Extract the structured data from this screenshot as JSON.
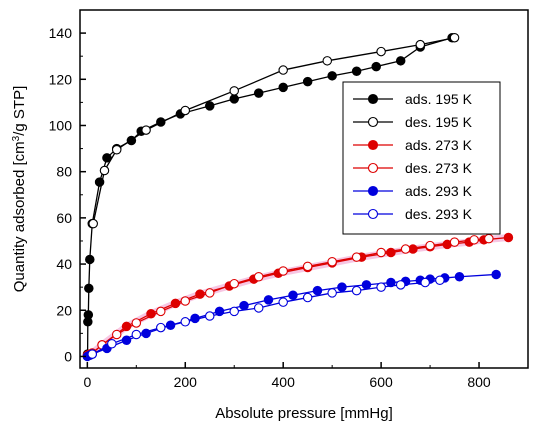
{
  "chart_data": {
    "type": "line",
    "xlabel": "Absolute pressure [mmHg]",
    "ylabel_parts": [
      "Quantity adsorbed [cm",
      "3",
      "/g STP]"
    ],
    "xlim": [
      -15,
      900
    ],
    "ylim": [
      -5,
      150
    ],
    "x_ticks": [
      0,
      200,
      400,
      600,
      800
    ],
    "y_ticks": [
      0,
      20,
      40,
      60,
      80,
      100,
      120,
      140
    ],
    "grid": false,
    "legend_position": "right",
    "series": [
      {
        "name": "ads. 195 K",
        "color": "#000000",
        "filled": true,
        "x": [
          0.5,
          1,
          2,
          3,
          5,
          10,
          25,
          40,
          60,
          90,
          110,
          150,
          190,
          250,
          300,
          350,
          400,
          450,
          500,
          550,
          590,
          640,
          680,
          745
        ],
        "y": [
          1,
          15,
          18,
          29.5,
          42,
          57.5,
          75.5,
          86,
          90,
          93.5,
          97.5,
          101.5,
          105,
          108.5,
          111.5,
          114,
          116.5,
          119,
          121.5,
          123.5,
          125.5,
          128,
          134,
          138
        ]
      },
      {
        "name": "des. 195 K",
        "color": "#000000",
        "filled": false,
        "x": [
          750,
          680,
          600,
          490,
          400,
          300,
          200,
          120,
          60,
          35,
          12
        ],
        "y": [
          138,
          135,
          132,
          128,
          124,
          115,
          106.5,
          98,
          89.5,
          80.5,
          57.5
        ]
      },
      {
        "name": "ads. 273 K",
        "color": "#dd0000",
        "filled": true,
        "x": [
          0,
          5,
          10,
          30,
          80,
          130,
          180,
          230,
          290,
          340,
          390,
          450,
          500,
          560,
          620,
          665,
          700,
          735,
          780,
          810,
          860
        ],
        "y": [
          0.5,
          1,
          1.5,
          5,
          13,
          18.5,
          23,
          27,
          30.5,
          33.5,
          36,
          38.5,
          40.5,
          43,
          45,
          46.5,
          47.5,
          48.5,
          49.5,
          50.5,
          51.5
        ]
      },
      {
        "name": "des. 273 K",
        "color": "#dd0000",
        "filled": false,
        "x": [
          820,
          790,
          750,
          700,
          650,
          600,
          550,
          500,
          450,
          400,
          350,
          300,
          250,
          200,
          150,
          100,
          60,
          30,
          5
        ],
        "y": [
          51,
          50.5,
          49.5,
          48,
          46.5,
          45,
          43,
          41,
          39,
          37,
          34.5,
          31.5,
          27.5,
          24,
          19.5,
          14.5,
          9.5,
          5,
          0.5
        ]
      },
      {
        "name": "ads. 293 K",
        "color": "#0000dd",
        "filled": true,
        "x": [
          0,
          5,
          10,
          40,
          80,
          120,
          170,
          220,
          270,
          320,
          370,
          420,
          470,
          520,
          570,
          620,
          650,
          680,
          700,
          730,
          760,
          835
        ],
        "y": [
          0,
          0.5,
          1,
          3.5,
          7,
          10,
          13.5,
          16.5,
          19.5,
          22,
          24.5,
          26.5,
          28.5,
          30,
          31,
          32,
          32.5,
          33,
          33.5,
          34,
          34.5,
          35.5
        ]
      },
      {
        "name": "des. 293 K",
        "color": "#0000dd",
        "filled": false,
        "x": [
          720,
          690,
          640,
          600,
          550,
          500,
          450,
          400,
          350,
          300,
          250,
          200,
          150,
          100,
          50,
          10
        ],
        "y": [
          33,
          32,
          31,
          30,
          28.5,
          27.5,
          25.5,
          23.5,
          21,
          19.5,
          17.5,
          15,
          12.5,
          9.5,
          5.5,
          1
        ]
      }
    ]
  }
}
